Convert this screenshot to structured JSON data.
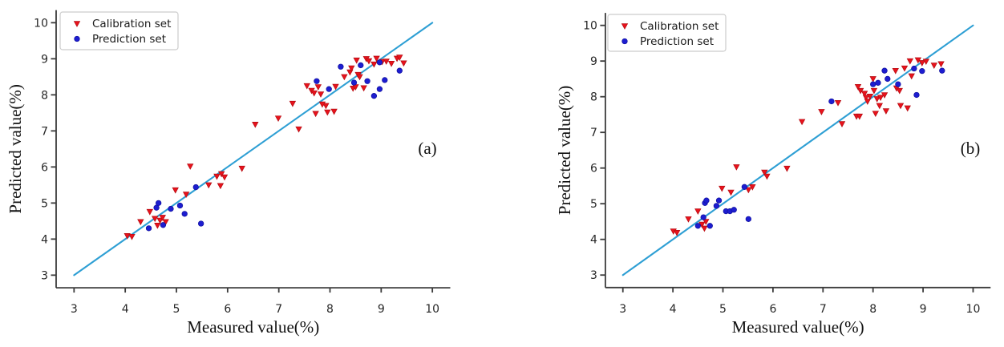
{
  "figure": {
    "background": "#ffffff",
    "text_color": "#111111",
    "spine_color": "#3b3b3b"
  },
  "chart_data": [
    {
      "type": "scatter",
      "panel_label": "(a)",
      "title": "",
      "xlabel": "Measured value(%)",
      "ylabel": "Predicted value(%)",
      "xlim": [
        2.65,
        10.35
      ],
      "ylim": [
        2.65,
        10.35
      ],
      "xticks": [
        3,
        4,
        5,
        6,
        7,
        8,
        9,
        10
      ],
      "yticks": [
        3,
        4,
        5,
        6,
        7,
        8,
        9,
        10
      ],
      "grid": false,
      "legend_position": "upper left",
      "identity_line": {
        "from": [
          3,
          3
        ],
        "to": [
          10,
          10
        ],
        "color": "#2e9fd4"
      },
      "series": [
        {
          "name": "Calibration set",
          "marker": "triangle-down",
          "color": "#e8121c",
          "edge_color": "#b30d12",
          "points": [
            [
              4.04,
              4.09
            ],
            [
              4.13,
              4.07
            ],
            [
              4.3,
              4.48
            ],
            [
              4.48,
              4.76
            ],
            [
              4.58,
              4.57
            ],
            [
              4.63,
              4.38
            ],
            [
              4.68,
              4.52
            ],
            [
              4.73,
              4.6
            ],
            [
              4.79,
              4.48
            ],
            [
              4.98,
              5.36
            ],
            [
              5.19,
              5.24
            ],
            [
              5.27,
              6.02
            ],
            [
              5.63,
              5.5
            ],
            [
              5.79,
              5.74
            ],
            [
              5.86,
              5.48
            ],
            [
              5.88,
              5.81
            ],
            [
              5.94,
              5.72
            ],
            [
              6.28,
              5.96
            ],
            [
              6.54,
              7.18
            ],
            [
              6.99,
              7.35
            ],
            [
              7.27,
              7.76
            ],
            [
              7.39,
              7.05
            ],
            [
              7.72,
              7.48
            ],
            [
              7.92,
              7.7
            ],
            [
              7.55,
              8.25
            ],
            [
              7.64,
              8.12
            ],
            [
              7.69,
              8.05
            ],
            [
              7.77,
              8.22
            ],
            [
              7.82,
              8.02
            ],
            [
              7.85,
              7.74
            ],
            [
              7.95,
              7.52
            ],
            [
              8.08,
              7.54
            ],
            [
              8.11,
              8.23
            ],
            [
              8.28,
              8.5
            ],
            [
              8.39,
              8.63
            ],
            [
              8.42,
              8.74
            ],
            [
              8.45,
              8.18
            ],
            [
              8.5,
              8.22
            ],
            [
              8.52,
              8.96
            ],
            [
              8.55,
              8.56
            ],
            [
              8.58,
              8.5
            ],
            [
              8.66,
              8.19
            ],
            [
              8.71,
              9.0
            ],
            [
              8.76,
              8.94
            ],
            [
              8.86,
              8.85
            ],
            [
              8.91,
              9.01
            ],
            [
              9.02,
              8.92
            ],
            [
              9.1,
              8.93
            ],
            [
              9.2,
              8.87
            ],
            [
              9.31,
              9.01
            ],
            [
              9.36,
              9.04
            ],
            [
              9.44,
              8.88
            ]
          ]
        },
        {
          "name": "Prediction set",
          "marker": "circle",
          "color": "#1d1dd0",
          "edge_color": "#12129e",
          "points": [
            [
              4.46,
              4.3
            ],
            [
              4.61,
              4.87
            ],
            [
              4.65,
              5.0
            ],
            [
              4.74,
              4.39
            ],
            [
              4.89,
              4.84
            ],
            [
              5.07,
              4.93
            ],
            [
              5.16,
              4.7
            ],
            [
              5.38,
              5.44
            ],
            [
              5.48,
              4.43
            ],
            [
              7.74,
              8.38
            ],
            [
              7.98,
              8.16
            ],
            [
              8.21,
              8.78
            ],
            [
              8.47,
              8.34
            ],
            [
              8.6,
              8.82
            ],
            [
              8.73,
              8.38
            ],
            [
              8.86,
              7.97
            ],
            [
              8.97,
              8.9
            ],
            [
              8.97,
              8.16
            ],
            [
              9.07,
              8.41
            ],
            [
              9.36,
              8.67
            ]
          ]
        }
      ]
    },
    {
      "type": "scatter",
      "panel_label": "(b)",
      "title": "",
      "xlabel": "Measured value(%)",
      "ylabel": "Predicted value(%)",
      "xlim": [
        2.65,
        10.35
      ],
      "ylim": [
        2.65,
        10.35
      ],
      "xticks": [
        3,
        4,
        5,
        6,
        7,
        8,
        9,
        10
      ],
      "yticks": [
        3,
        4,
        5,
        6,
        7,
        8,
        9,
        10
      ],
      "grid": false,
      "legend_position": "upper left",
      "identity_line": {
        "from": [
          3,
          3
        ],
        "to": [
          10,
          10
        ],
        "color": "#2e9fd4"
      },
      "series": [
        {
          "name": "Calibration set",
          "marker": "triangle-down",
          "color": "#e8121c",
          "edge_color": "#b30d12",
          "points": [
            [
              4.01,
              4.23
            ],
            [
              4.08,
              4.19
            ],
            [
              4.31,
              4.57
            ],
            [
              4.5,
              4.79
            ],
            [
              4.58,
              4.42
            ],
            [
              4.63,
              4.31
            ],
            [
              4.66,
              4.5
            ],
            [
              4.98,
              5.43
            ],
            [
              5.16,
              5.32
            ],
            [
              5.27,
              6.03
            ],
            [
              5.51,
              5.39
            ],
            [
              5.59,
              5.47
            ],
            [
              5.83,
              5.88
            ],
            [
              5.88,
              5.77
            ],
            [
              6.28,
              5.99
            ],
            [
              6.58,
              7.3
            ],
            [
              6.97,
              7.58
            ],
            [
              7.3,
              7.83
            ],
            [
              7.38,
              7.24
            ],
            [
              7.67,
              7.45
            ],
            [
              7.73,
              7.45
            ],
            [
              7.7,
              8.28
            ],
            [
              7.75,
              8.17
            ],
            [
              7.83,
              8.09
            ],
            [
              7.86,
              7.98
            ],
            [
              7.89,
              7.87
            ],
            [
              7.94,
              8.01
            ],
            [
              8.0,
              8.5
            ],
            [
              8.02,
              8.17
            ],
            [
              8.05,
              7.53
            ],
            [
              8.08,
              7.94
            ],
            [
              8.13,
              7.75
            ],
            [
              8.15,
              7.98
            ],
            [
              8.23,
              8.05
            ],
            [
              8.26,
              7.6
            ],
            [
              8.45,
              8.73
            ],
            [
              8.47,
              8.24
            ],
            [
              8.53,
              8.17
            ],
            [
              8.55,
              7.75
            ],
            [
              8.63,
              8.8
            ],
            [
              8.69,
              7.68
            ],
            [
              8.74,
              9.0
            ],
            [
              8.77,
              8.58
            ],
            [
              8.9,
              9.03
            ],
            [
              8.98,
              8.95
            ],
            [
              9.06,
              8.99
            ],
            [
              9.22,
              8.88
            ],
            [
              9.36,
              8.92
            ]
          ]
        },
        {
          "name": "Prediction set",
          "marker": "circle",
          "color": "#1d1dd0",
          "edge_color": "#12129e",
          "points": [
            [
              4.5,
              4.38
            ],
            [
              4.61,
              4.62
            ],
            [
              4.64,
              5.02
            ],
            [
              4.67,
              5.09
            ],
            [
              4.74,
              4.38
            ],
            [
              4.87,
              4.94
            ],
            [
              4.92,
              5.09
            ],
            [
              5.06,
              4.79
            ],
            [
              5.14,
              4.79
            ],
            [
              5.22,
              4.83
            ],
            [
              5.43,
              5.47
            ],
            [
              5.51,
              4.57
            ],
            [
              7.17,
              7.87
            ],
            [
              8.0,
              8.35
            ],
            [
              8.1,
              8.39
            ],
            [
              8.23,
              8.73
            ],
            [
              8.29,
              8.5
            ],
            [
              8.5,
              8.35
            ],
            [
              8.87,
              8.05
            ],
            [
              8.82,
              8.79
            ],
            [
              8.98,
              8.72
            ],
            [
              9.38,
              8.73
            ]
          ]
        }
      ]
    }
  ]
}
